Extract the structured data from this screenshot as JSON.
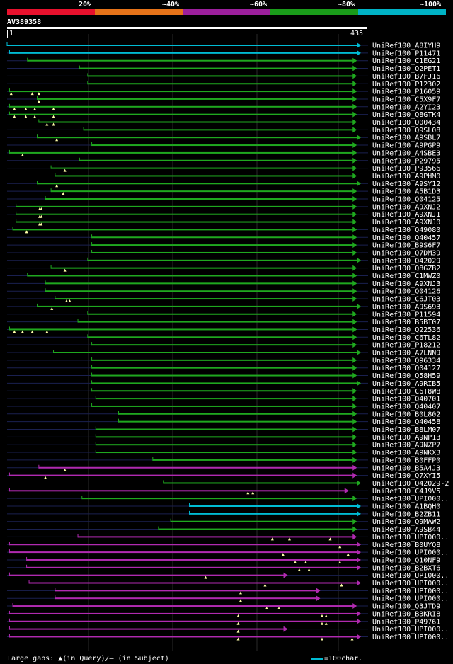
{
  "legend": {
    "colors": [
      "#e8112d",
      "#e67319",
      "#9c1f9c",
      "#1a9c1a",
      "#00b3c6"
    ],
    "labels": [
      "20%",
      "~40%",
      "~60%",
      "~80%",
      "~100%"
    ]
  },
  "query": {
    "id": "AV389358",
    "start": "1",
    "end": "435",
    "length": 435
  },
  "palette": {
    "cyan": "#00bcd4",
    "green": "#1fa81f",
    "purple": "#b02ab0",
    "faint": "#1a2050"
  },
  "hits": [
    {
      "label": "UniRef100_A8IYH9",
      "s": 1,
      "e": 435,
      "c": "cyan",
      "g": []
    },
    {
      "label": "UniRef100_P11471",
      "s": 4,
      "e": 435,
      "c": "cyan",
      "g": []
    },
    {
      "label": "UniRef100_C1EG21",
      "s": 26,
      "e": 430,
      "c": "green",
      "g": []
    },
    {
      "label": "UniRef100_Q2PET1",
      "s": 90,
      "e": 430,
      "c": "green",
      "g": []
    },
    {
      "label": "UniRef100_B7FJ16",
      "s": 100,
      "e": 430,
      "c": "green",
      "g": []
    },
    {
      "label": "UniRef100_P12302",
      "s": 100,
      "e": 430,
      "c": "green",
      "g": []
    },
    {
      "label": "UniRef100_P16059",
      "s": 4,
      "e": 430,
      "c": "green",
      "g": [
        6,
        32,
        40
      ]
    },
    {
      "label": "UniRef100_C5X9F7",
      "s": 38,
      "e": 430,
      "c": "green",
      "g": [
        40
      ]
    },
    {
      "label": "UniRef100_A2YI23",
      "s": 4,
      "e": 430,
      "c": "green",
      "g": [
        10,
        24,
        35,
        58
      ]
    },
    {
      "label": "UniRef100_Q8GTK4",
      "s": 4,
      "e": 430,
      "c": "green",
      "g": [
        10,
        24,
        35,
        58
      ]
    },
    {
      "label": "UniRef100_Q00434",
      "s": 40,
      "e": 430,
      "c": "green",
      "g": [
        50,
        58
      ]
    },
    {
      "label": "UniRef100_Q9SL08",
      "s": 95,
      "e": 430,
      "c": "green",
      "g": []
    },
    {
      "label": "UniRef100_A9SBL7",
      "s": 38,
      "e": 435,
      "c": "green",
      "g": [
        62
      ]
    },
    {
      "label": "UniRef100_A9PGP9",
      "s": 105,
      "e": 430,
      "c": "green",
      "g": []
    },
    {
      "label": "UniRef100_A4SBE3",
      "s": 4,
      "e": 430,
      "c": "green",
      "g": [
        20
      ]
    },
    {
      "label": "UniRef100_P29795",
      "s": 90,
      "e": 430,
      "c": "green",
      "g": []
    },
    {
      "label": "UniRef100_P93566",
      "s": 55,
      "e": 430,
      "c": "green",
      "g": [
        72
      ]
    },
    {
      "label": "UniRef100_A9PHM0",
      "s": 60,
      "e": 430,
      "c": "green",
      "g": []
    },
    {
      "label": "UniRef100_A9SY12",
      "s": 38,
      "e": 435,
      "c": "green",
      "g": [
        62
      ]
    },
    {
      "label": "UniRef100_A5B1D3",
      "s": 55,
      "e": 430,
      "c": "green",
      "g": [
        70
      ]
    },
    {
      "label": "UniRef100_Q04125",
      "s": 48,
      "e": 430,
      "c": "green",
      "g": []
    },
    {
      "label": "UniRef100_A9XNJ2",
      "s": 12,
      "e": 430,
      "c": "green",
      "g": [
        41,
        43
      ]
    },
    {
      "label": "UniRef100_A9XNJ1",
      "s": 12,
      "e": 430,
      "c": "green",
      "g": [
        41,
        43
      ]
    },
    {
      "label": "UniRef100_A9XNJ0",
      "s": 12,
      "e": 430,
      "c": "green",
      "g": [
        41,
        43
      ]
    },
    {
      "label": "UniRef100_Q49080",
      "s": 8,
      "e": 430,
      "c": "green",
      "g": [
        25
      ]
    },
    {
      "label": "UniRef100_Q40457",
      "s": 105,
      "e": 430,
      "c": "green",
      "g": []
    },
    {
      "label": "UniRef100_B9S6F7",
      "s": 105,
      "e": 430,
      "c": "green",
      "g": []
    },
    {
      "label": "UniRef100_Q7DM39",
      "s": 105,
      "e": 430,
      "c": "green",
      "g": []
    },
    {
      "label": "UniRef100_Q42029",
      "s": 100,
      "e": 435,
      "c": "green",
      "g": []
    },
    {
      "label": "UniRef100_Q8GZB2",
      "s": 55,
      "e": 430,
      "c": "green",
      "g": [
        72
      ]
    },
    {
      "label": "UniRef100_C1MWZ0",
      "s": 26,
      "e": 430,
      "c": "green",
      "g": []
    },
    {
      "label": "UniRef100_A9XNJ3",
      "s": 48,
      "e": 430,
      "c": "green",
      "g": []
    },
    {
      "label": "UniRef100_Q04126",
      "s": 48,
      "e": 430,
      "c": "green",
      "g": []
    },
    {
      "label": "UniRef100_C6JT03",
      "s": 60,
      "e": 430,
      "c": "green",
      "g": [
        74,
        78
      ]
    },
    {
      "label": "UniRef100_A9S693",
      "s": 38,
      "e": 435,
      "c": "green",
      "g": [
        56
      ]
    },
    {
      "label": "UniRef100_P11594",
      "s": 100,
      "e": 430,
      "c": "green",
      "g": []
    },
    {
      "label": "UniRef100_B5BT07",
      "s": 88,
      "e": 430,
      "c": "green",
      "g": []
    },
    {
      "label": "UniRef100_Q22536",
      "s": 4,
      "e": 430,
      "c": "green",
      "g": [
        10,
        20,
        32,
        50
      ]
    },
    {
      "label": "UniRef100_C6TL82",
      "s": 100,
      "e": 430,
      "c": "green",
      "g": []
    },
    {
      "label": "UniRef100_P18212",
      "s": 105,
      "e": 430,
      "c": "green",
      "g": []
    },
    {
      "label": "UniRef100_A7LNN9",
      "s": 58,
      "e": 435,
      "c": "green",
      "g": []
    },
    {
      "label": "UniRef100_Q96334",
      "s": 105,
      "e": 430,
      "c": "green",
      "g": []
    },
    {
      "label": "UniRef100_Q04127",
      "s": 105,
      "e": 430,
      "c": "green",
      "g": []
    },
    {
      "label": "UniRef100_Q58H59",
      "s": 105,
      "e": 430,
      "c": "green",
      "g": []
    },
    {
      "label": "UniRef100_A9RIB5",
      "s": 105,
      "e": 435,
      "c": "green",
      "g": []
    },
    {
      "label": "UniRef100_C6T8W8",
      "s": 105,
      "e": 430,
      "c": "green",
      "g": []
    },
    {
      "label": "UniRef100_Q40701",
      "s": 110,
      "e": 430,
      "c": "green",
      "g": []
    },
    {
      "label": "UniRef100_Q40407",
      "s": 105,
      "e": 430,
      "c": "green",
      "g": []
    },
    {
      "label": "UniRef100_B0L802",
      "s": 138,
      "e": 430,
      "c": "green",
      "g": []
    },
    {
      "label": "UniRef100_Q40458",
      "s": 138,
      "e": 430,
      "c": "green",
      "g": []
    },
    {
      "label": "UniRef100_B8LM07",
      "s": 110,
      "e": 430,
      "c": "green",
      "g": []
    },
    {
      "label": "UniRef100_A9NP13",
      "s": 110,
      "e": 430,
      "c": "green",
      "g": []
    },
    {
      "label": "UniRef100_A9NZP7",
      "s": 110,
      "e": 430,
      "c": "green",
      "g": []
    },
    {
      "label": "UniRef100_A9NKX3",
      "s": 110,
      "e": 430,
      "c": "green",
      "g": []
    },
    {
      "label": "UniRef100_B0FFP0",
      "s": 180,
      "e": 430,
      "c": "green",
      "g": []
    },
    {
      "label": "UniRef100_B5A4J3",
      "s": 40,
      "e": 430,
      "c": "purple",
      "g": [
        72
      ]
    },
    {
      "label": "UniRef100_Q7XYI5",
      "s": 4,
      "e": 430,
      "c": "purple",
      "g": [
        48
      ]
    },
    {
      "label": "UniRef100_Q42029-2",
      "s": 193,
      "e": 435,
      "c": "green",
      "g": []
    },
    {
      "label": "UniRef100_C4J9V5",
      "s": 4,
      "e": 420,
      "c": "purple",
      "g": [
        297,
        303
      ]
    },
    {
      "label": "UniRef100_UPI000..",
      "s": 93,
      "e": 430,
      "c": "green",
      "g": []
    },
    {
      "label": "UniRef100_A1BQH0",
      "s": 225,
      "e": 435,
      "c": "cyan",
      "g": []
    },
    {
      "label": "UniRef100_B2ZB11",
      "s": 225,
      "e": 435,
      "c": "cyan",
      "g": []
    },
    {
      "label": "UniRef100_Q9MAW2",
      "s": 202,
      "e": 430,
      "c": "green",
      "g": []
    },
    {
      "label": "UniRef100_A9SB44",
      "s": 187,
      "e": 430,
      "c": "green",
      "g": []
    },
    {
      "label": "UniRef100_UPI000..",
      "s": 88,
      "e": 430,
      "c": "purple",
      "g": [
        327,
        348,
        398
      ]
    },
    {
      "label": "UniRef100_B0UYQ8",
      "s": 4,
      "e": 435,
      "c": "purple",
      "g": [
        410
      ]
    },
    {
      "label": "UniRef100_UPI000..",
      "s": 4,
      "e": 435,
      "c": "purple",
      "g": [
        340,
        420
      ]
    },
    {
      "label": "UniRef100_Q10NF9",
      "s": 25,
      "e": 435,
      "c": "purple",
      "g": [
        355,
        368,
        410
      ]
    },
    {
      "label": "UniRef100_B2BXT6",
      "s": 25,
      "e": 435,
      "c": "purple",
      "g": [
        360,
        372
      ]
    },
    {
      "label": "UniRef100_UPI000..",
      "s": 4,
      "e": 345,
      "c": "purple",
      "g": [
        245
      ]
    },
    {
      "label": "UniRef100_UPI000..",
      "s": 28,
      "e": 435,
      "c": "purple",
      "g": [
        318,
        412
      ]
    },
    {
      "label": "UniRef100_UPI000..",
      "s": 60,
      "e": 385,
      "c": "purple",
      "g": [
        288
      ]
    },
    {
      "label": "UniRef100_UPI000..",
      "s": 60,
      "e": 385,
      "c": "purple",
      "g": [
        288
      ]
    },
    {
      "label": "UniRef100_Q3JTD9",
      "s": 8,
      "e": 430,
      "c": "purple",
      "g": [
        320,
        335
      ]
    },
    {
      "label": "UniRef100_B3KRI8",
      "s": 4,
      "e": 435,
      "c": "purple",
      "g": [
        285,
        388,
        393
      ]
    },
    {
      "label": "UniRef100_P49761",
      "s": 4,
      "e": 435,
      "c": "purple",
      "g": [
        285,
        388,
        393
      ]
    },
    {
      "label": "UniRef100_UPI000..",
      "s": 4,
      "e": 345,
      "c": "purple",
      "g": [
        285
      ]
    },
    {
      "label": "UniRef100_UPI000..",
      "s": 4,
      "e": 435,
      "c": "purple",
      "g": [
        285,
        388,
        425
      ]
    }
  ],
  "footer": {
    "gaps_text": "Large gaps: ▲(in Query)/— (in Subject)",
    "scale_text": "=100char."
  }
}
